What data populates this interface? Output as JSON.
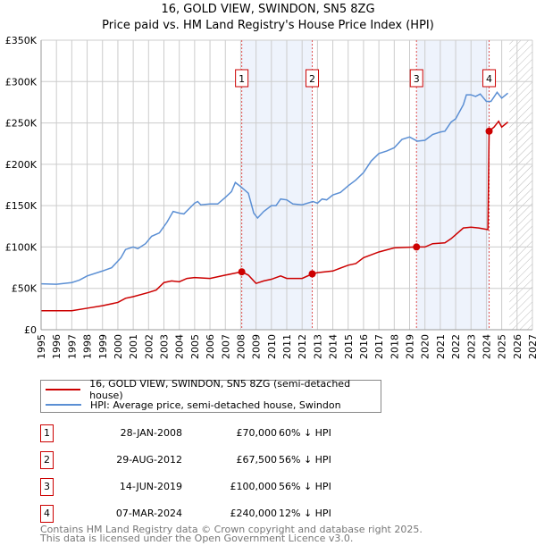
{
  "chart_data": {
    "type": "line",
    "title": "16, GOLD VIEW, SWINDON, SN5 8ZG",
    "subtitle": "Price paid vs. HM Land Registry's House Price Index (HPI)",
    "xlim": [
      1995,
      2027
    ],
    "ylim": [
      0,
      350000
    ],
    "y_ticks": [
      {
        "v": 0,
        "label": "£0"
      },
      {
        "v": 50000,
        "label": "£50K"
      },
      {
        "v": 100000,
        "label": "£100K"
      },
      {
        "v": 150000,
        "label": "£150K"
      },
      {
        "v": 200000,
        "label": "£200K"
      },
      {
        "v": 250000,
        "label": "£250K"
      },
      {
        "v": 300000,
        "label": "£300K"
      },
      {
        "v": 350000,
        "label": "£350K"
      }
    ],
    "x_ticks": [
      "1995",
      "1996",
      "1997",
      "1998",
      "1999",
      "2000",
      "2001",
      "2002",
      "2003",
      "2004",
      "2005",
      "2006",
      "2007",
      "2008",
      "2009",
      "2010",
      "2011",
      "2012",
      "2013",
      "2014",
      "2015",
      "2016",
      "2017",
      "2018",
      "2019",
      "2020",
      "2021",
      "2022",
      "2023",
      "2024",
      "2025",
      "2026",
      "2027"
    ],
    "grid": true,
    "shaded_ranges": [
      [
        2008.07,
        2012.66
      ],
      [
        2019.45,
        2024.18
      ]
    ],
    "forecast_start": 2025.5,
    "series": [
      {
        "name": "16, GOLD VIEW, SWINDON, SN5 8ZG (semi-detached house)",
        "color": "#cc0000",
        "points": [
          [
            1995,
            23000
          ],
          [
            1997,
            23000
          ],
          [
            1998,
            26000
          ],
          [
            1999,
            29000
          ],
          [
            2000,
            33000
          ],
          [
            2000.5,
            38000
          ],
          [
            2001,
            40000
          ],
          [
            2002,
            45000
          ],
          [
            2002.5,
            48000
          ],
          [
            2003,
            57000
          ],
          [
            2003.5,
            59000
          ],
          [
            2004,
            58000
          ],
          [
            2004.5,
            62000
          ],
          [
            2005,
            63000
          ],
          [
            2006,
            62000
          ],
          [
            2007,
            66000
          ],
          [
            2008.07,
            70000
          ],
          [
            2008.5,
            66000
          ],
          [
            2009,
            56000
          ],
          [
            2009.5,
            59000
          ],
          [
            2010,
            61000
          ],
          [
            2010.6,
            65000
          ],
          [
            2011,
            62000
          ],
          [
            2012,
            62000
          ],
          [
            2012.66,
            67500
          ],
          [
            2013,
            69000
          ],
          [
            2014,
            71000
          ],
          [
            2015,
            78000
          ],
          [
            2015.5,
            80000
          ],
          [
            2016,
            87000
          ],
          [
            2017,
            94000
          ],
          [
            2018,
            99000
          ],
          [
            2019.45,
            100000
          ],
          [
            2020,
            100000
          ],
          [
            2020.5,
            104000
          ],
          [
            2021.3,
            105000
          ],
          [
            2021.7,
            110000
          ],
          [
            2022.5,
            123000
          ],
          [
            2023,
            124000
          ],
          [
            2023.5,
            123000
          ],
          [
            2024.1,
            121000
          ],
          [
            2024.18,
            240000
          ],
          [
            2024.5,
            245000
          ],
          [
            2024.8,
            252000
          ],
          [
            2025,
            245000
          ],
          [
            2025.4,
            251000
          ]
        ]
      },
      {
        "name": "HPI: Average price, semi-detached house, Swindon",
        "color": "#5b8fd4",
        "points": [
          [
            1995,
            55500
          ],
          [
            1996,
            55000
          ],
          [
            1997,
            57000
          ],
          [
            1997.5,
            60000
          ],
          [
            1998,
            65000
          ],
          [
            1999,
            71000
          ],
          [
            1999.6,
            75000
          ],
          [
            2000.2,
            87000
          ],
          [
            2000.5,
            97000
          ],
          [
            2001,
            100000
          ],
          [
            2001.3,
            98000
          ],
          [
            2001.8,
            104000
          ],
          [
            2002.2,
            113000
          ],
          [
            2002.7,
            117000
          ],
          [
            2003.2,
            130000
          ],
          [
            2003.6,
            143000
          ],
          [
            2004,
            141000
          ],
          [
            2004.3,
            140000
          ],
          [
            2005,
            153000
          ],
          [
            2005.2,
            155000
          ],
          [
            2005.4,
            151000
          ],
          [
            2006,
            152000
          ],
          [
            2006.5,
            152000
          ],
          [
            2007,
            160000
          ],
          [
            2007.4,
            167000
          ],
          [
            2007.65,
            178000
          ],
          [
            2008,
            173000
          ],
          [
            2008.5,
            165000
          ],
          [
            2008.85,
            141000
          ],
          [
            2009.1,
            135000
          ],
          [
            2009.5,
            143000
          ],
          [
            2010,
            150000
          ],
          [
            2010.3,
            150000
          ],
          [
            2010.6,
            158000
          ],
          [
            2011,
            157000
          ],
          [
            2011.4,
            152000
          ],
          [
            2012,
            151000
          ],
          [
            2012.7,
            155000
          ],
          [
            2013,
            153000
          ],
          [
            2013.3,
            158000
          ],
          [
            2013.6,
            157000
          ],
          [
            2014,
            163000
          ],
          [
            2014.5,
            166000
          ],
          [
            2015,
            174000
          ],
          [
            2015.5,
            181000
          ],
          [
            2016,
            190000
          ],
          [
            2016.5,
            204000
          ],
          [
            2017,
            213000
          ],
          [
            2017.5,
            216000
          ],
          [
            2018,
            220000
          ],
          [
            2018.5,
            230000
          ],
          [
            2019,
            233000
          ],
          [
            2019.5,
            228000
          ],
          [
            2020,
            229000
          ],
          [
            2020.5,
            236000
          ],
          [
            2021,
            239000
          ],
          [
            2021.3,
            240000
          ],
          [
            2021.7,
            251000
          ],
          [
            2022,
            255000
          ],
          [
            2022.5,
            272000
          ],
          [
            2022.7,
            284000
          ],
          [
            2023,
            284000
          ],
          [
            2023.3,
            282000
          ],
          [
            2023.6,
            285000
          ],
          [
            2024,
            276000
          ],
          [
            2024.3,
            276000
          ],
          [
            2024.7,
            287000
          ],
          [
            2025,
            280000
          ],
          [
            2025.4,
            286000
          ]
        ]
      }
    ],
    "annotations": [
      {
        "label": "1",
        "x": 2008.07,
        "y": 70000
      },
      {
        "label": "2",
        "x": 2012.66,
        "y": 67500
      },
      {
        "label": "3",
        "x": 2019.45,
        "y": 100000
      },
      {
        "label": "4",
        "x": 2024.18,
        "y": 240000
      }
    ]
  },
  "transactions": [
    {
      "num": "1",
      "date": "28-JAN-2008",
      "price": "£70,000",
      "hpi": "60% ↓ HPI"
    },
    {
      "num": "2",
      "date": "29-AUG-2012",
      "price": "£67,500",
      "hpi": "56% ↓ HPI"
    },
    {
      "num": "3",
      "date": "14-JUN-2019",
      "price": "£100,000",
      "hpi": "56% ↓ HPI"
    },
    {
      "num": "4",
      "date": "07-MAR-2024",
      "price": "£240,000",
      "hpi": "12% ↓ HPI"
    }
  ],
  "footer": {
    "line1": "Contains HM Land Registry data © Crown copyright and database right 2025.",
    "line2": "This data is licensed under the Open Government Licence v3.0."
  }
}
